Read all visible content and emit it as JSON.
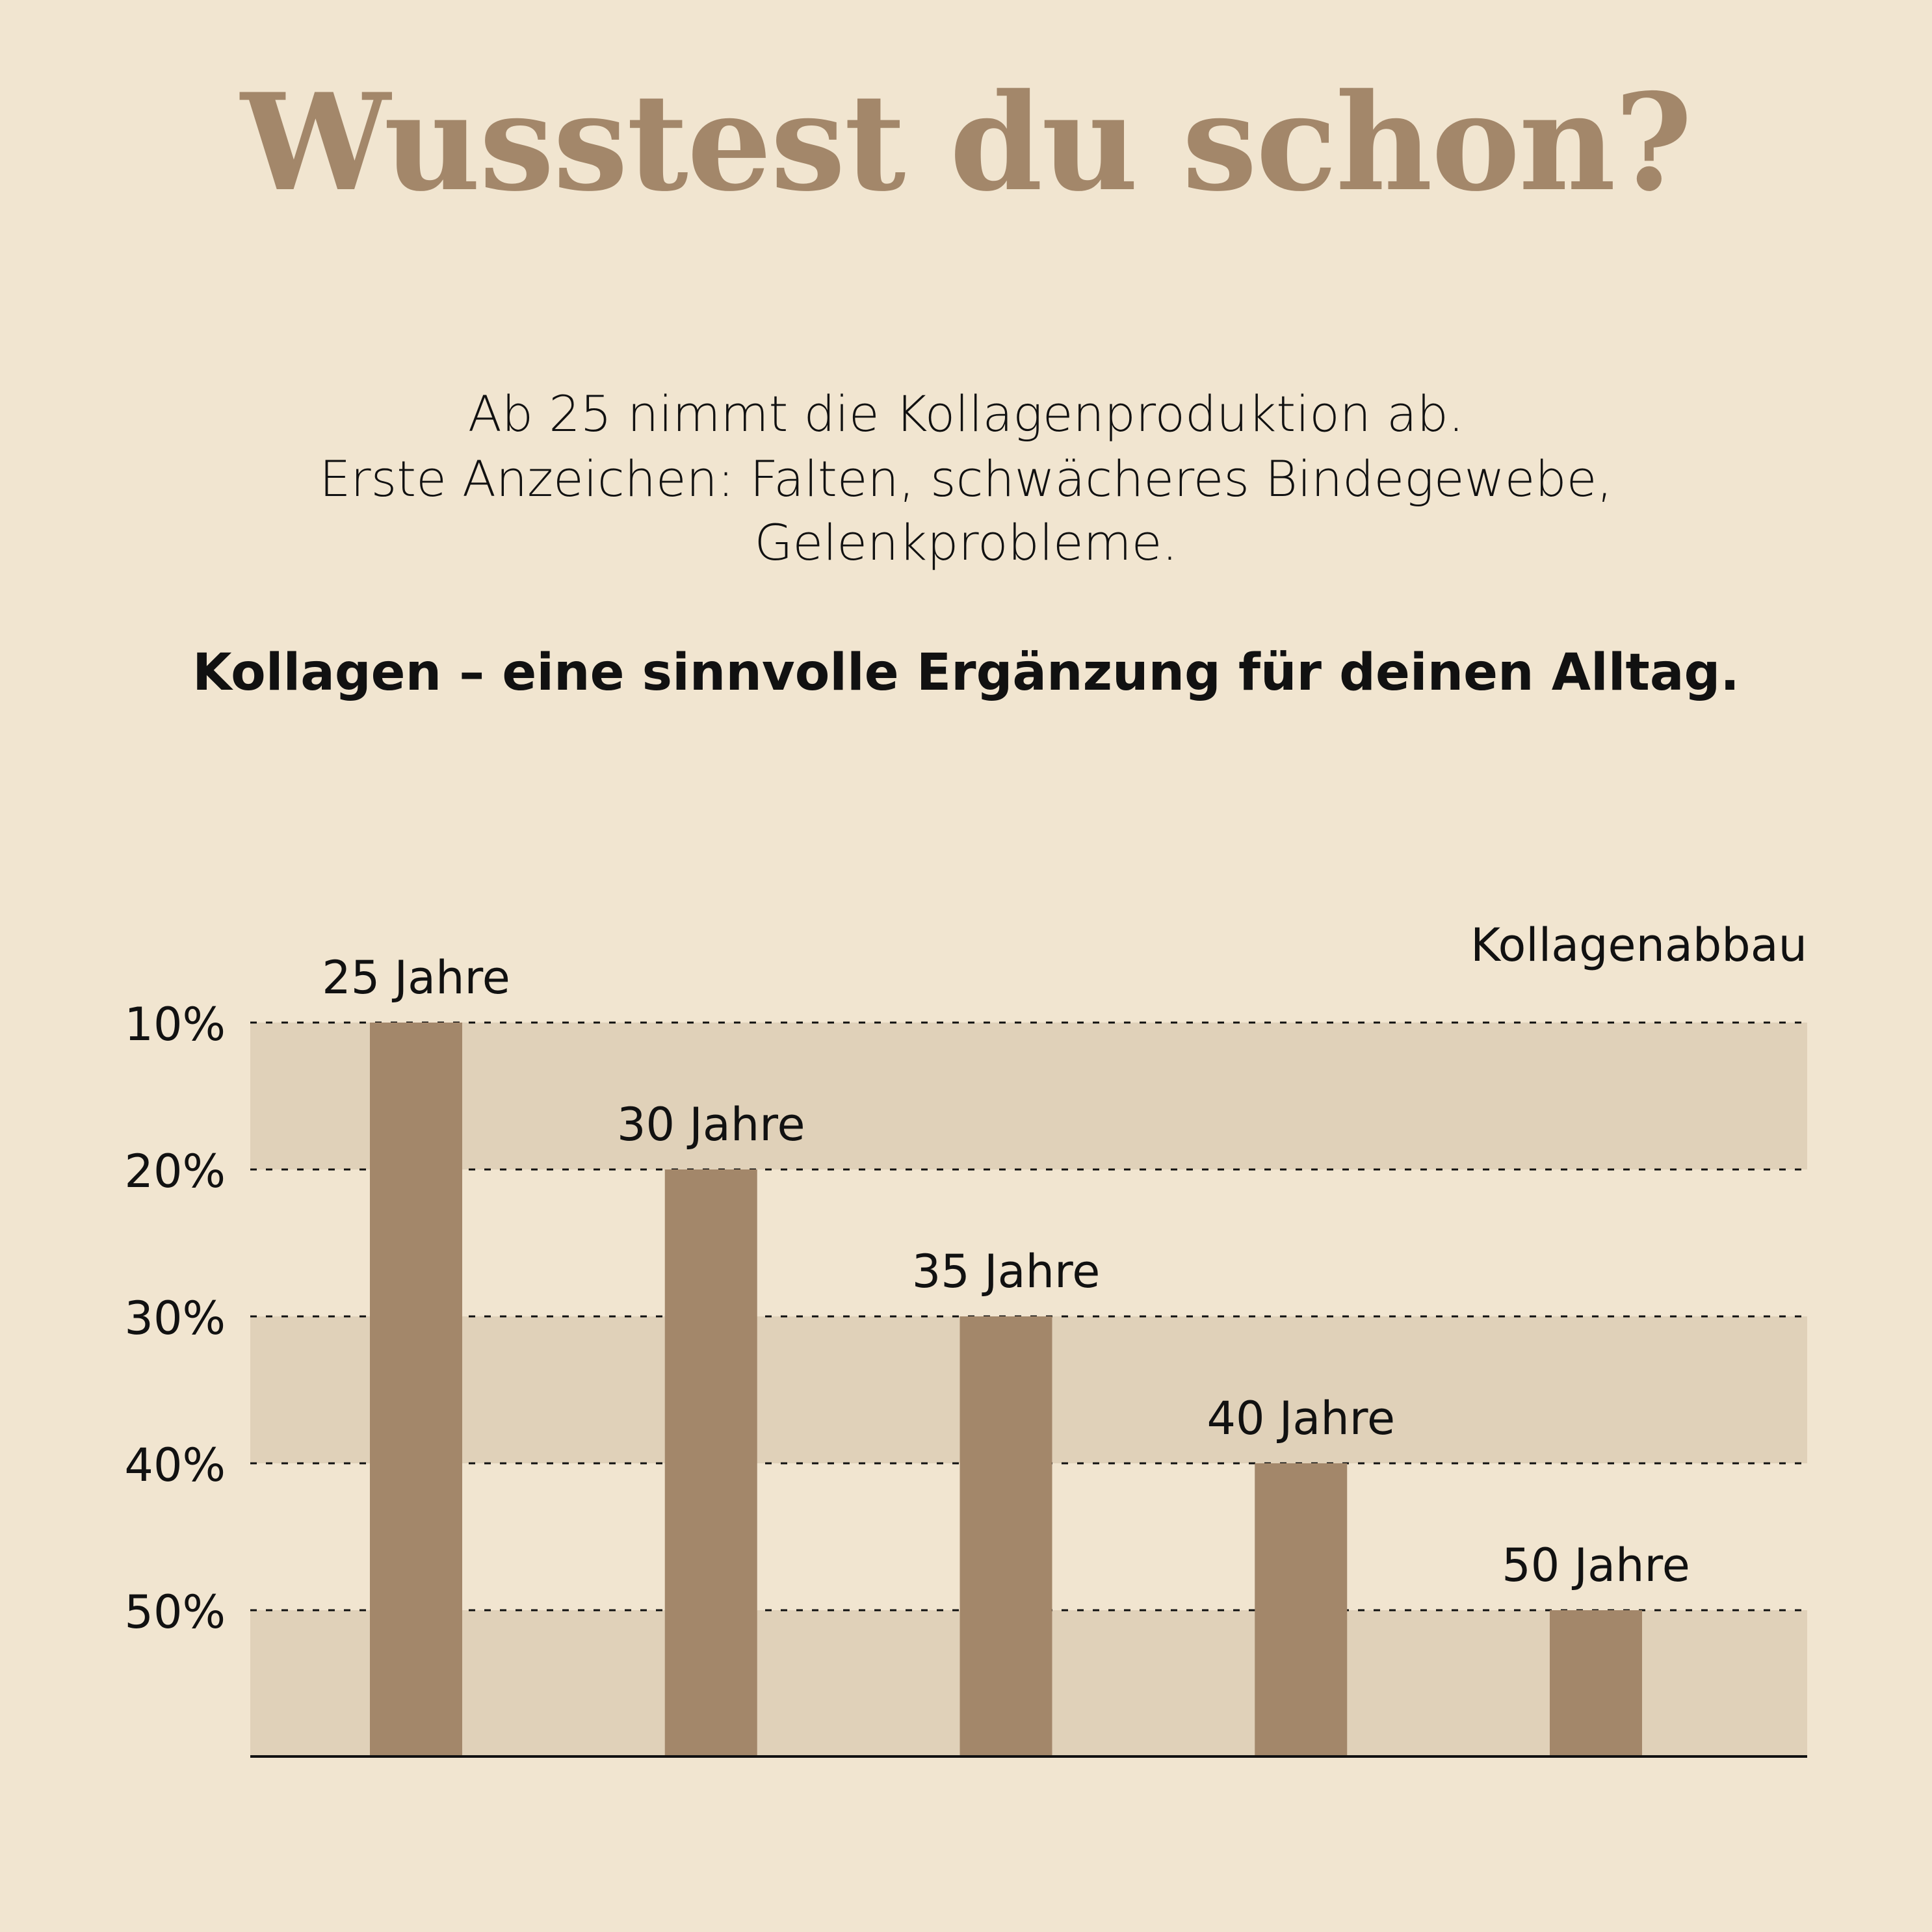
{
  "header": {
    "title": "Wusstest du schon?",
    "lines": [
      "Ab 25 nimmt die Kollagenproduktion ab.",
      "Erste Anzeichen: Falten, schwächeres Bindegewebe,",
      "Gelenkprobleme."
    ],
    "tagline": "Kollagen – eine sinnvolle Ergänzung für deinen Alltag."
  },
  "colors": {
    "background": "#f1e5d0",
    "band": "#e0d1b9",
    "bar": "#a3876a",
    "title": "#a3876a"
  },
  "chart_data": {
    "type": "bar",
    "title": "Kollagenabbau",
    "categories": [
      "25 Jahre",
      "30 Jahre",
      "35 Jahre",
      "40 Jahre",
      "50 Jahre"
    ],
    "values": [
      10,
      20,
      30,
      40,
      50
    ],
    "yticks": [
      "10%",
      "20%",
      "30%",
      "40%",
      "50%"
    ],
    "ytick_values": [
      10,
      20,
      30,
      40,
      50
    ],
    "ylim": [
      10,
      60
    ],
    "y_inverted": true,
    "grid": true
  }
}
